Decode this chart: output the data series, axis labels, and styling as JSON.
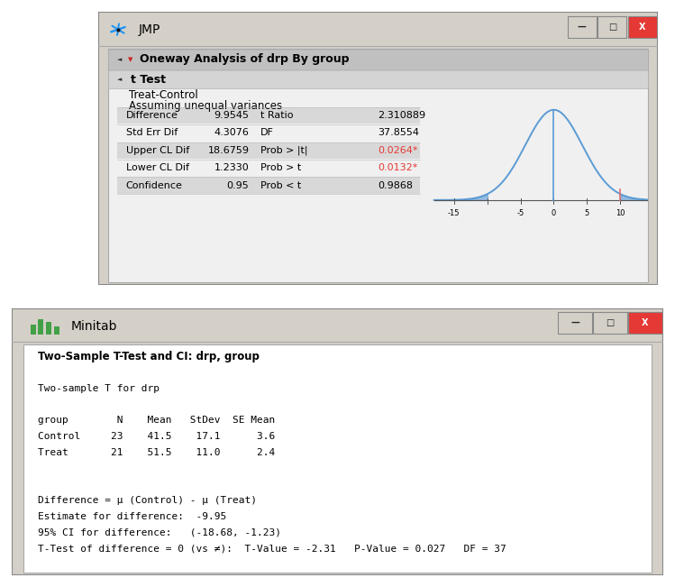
{
  "jmp": {
    "title": "JMP",
    "header1": "Oneway Analysis of drp By group",
    "header2": "t Test",
    "subtitle1": "Treat-Control",
    "subtitle2": "Assuming unequal variances",
    "table_rows": [
      [
        "Difference",
        "9.9545",
        "t Ratio",
        "2.310889"
      ],
      [
        "Std Err Dif",
        "4.3076",
        "DF",
        "37.8554"
      ],
      [
        "Upper CL Dif",
        "18.6759",
        "Prob > |t|",
        "0.0264*"
      ],
      [
        "Lower CL Dif",
        "1.2330",
        "Prob > t",
        "0.0132*"
      ],
      [
        "Confidence",
        "0.95",
        "Prob < t",
        "0.9868"
      ]
    ],
    "red_rows": [
      2,
      3
    ],
    "shaded_rows": [
      0,
      2,
      4
    ],
    "win_bg": "#d4d0c8",
    "content_bg": "#f0f0f0",
    "header_bg": "#c8c8c8",
    "row_bg_light": "#e0e0e0",
    "row_bg_dark": "#d0d0d0",
    "close_color": "#e53935",
    "curve_color": "#5b9bd5",
    "fill_color": "#5b9bd5",
    "vline_color": "#5b9bd5",
    "tline_color": "#e07070",
    "t_value": 9.9545,
    "curve_sigma": 4.3
  },
  "mit": {
    "title": "Minitab",
    "win_bg": "#d4d0c8",
    "content_bg": "#ffffff",
    "close_color": "#e53935",
    "icon_color": "#43a047",
    "bold_line": "Two-Sample T-Test and CI: drp, group",
    "lines": [
      "",
      "Two-sample T for drp",
      "",
      "group        N    Mean   StDev  SE Mean",
      "Control     23    41.5    17.1      3.6",
      "Treat       21    51.5    11.0      2.4",
      "",
      "",
      "Difference = μ (Control) - μ (Treat)",
      "Estimate for difference:  -9.95",
      "95% CI for difference:   (-18.68, -1.23)",
      "T-Test of difference = 0 (vs ≠):  T-Value = -2.31   P-Value = 0.027   DF = 37"
    ]
  }
}
